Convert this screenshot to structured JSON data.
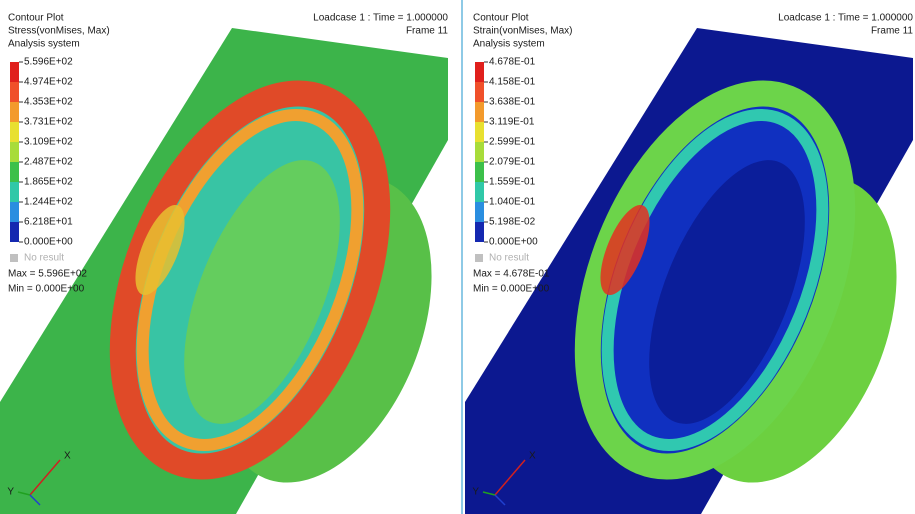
{
  "panels": [
    {
      "title": "Contour Plot",
      "result": "Stress(vonMises, Max)",
      "system": "Analysis system",
      "legend": [
        "5.596E+02",
        "4.974E+02",
        "4.353E+02",
        "3.731E+02",
        "3.109E+02",
        "2.487E+02",
        "1.865E+02",
        "1.244E+02",
        "6.218E+01",
        "0.000E+00"
      ],
      "no_result": "No result",
      "max": "Max = 5.596E+02",
      "min": "Min = 0.000E+00",
      "loadcase": "Loadcase 1 : Time = 1.000000",
      "frame": "Frame 11",
      "triad": [
        "X",
        "Y"
      ]
    },
    {
      "title": "Contour Plot",
      "result": "Strain(vonMises, Max)",
      "system": "Analysis system",
      "legend": [
        "4.678E-01",
        "4.158E-01",
        "3.638E-01",
        "3.119E-01",
        "2.599E-01",
        "2.079E-01",
        "1.559E-01",
        "1.040E-01",
        "5.198E-02",
        "0.000E+00"
      ],
      "no_result": "No result",
      "max": "Max = 4.678E-01",
      "min": "Min = 0.000E+00",
      "loadcase": "Loadcase 1 : Time = 1.000000",
      "frame": "Frame 11",
      "triad": [
        "X",
        "Y"
      ]
    }
  ]
}
